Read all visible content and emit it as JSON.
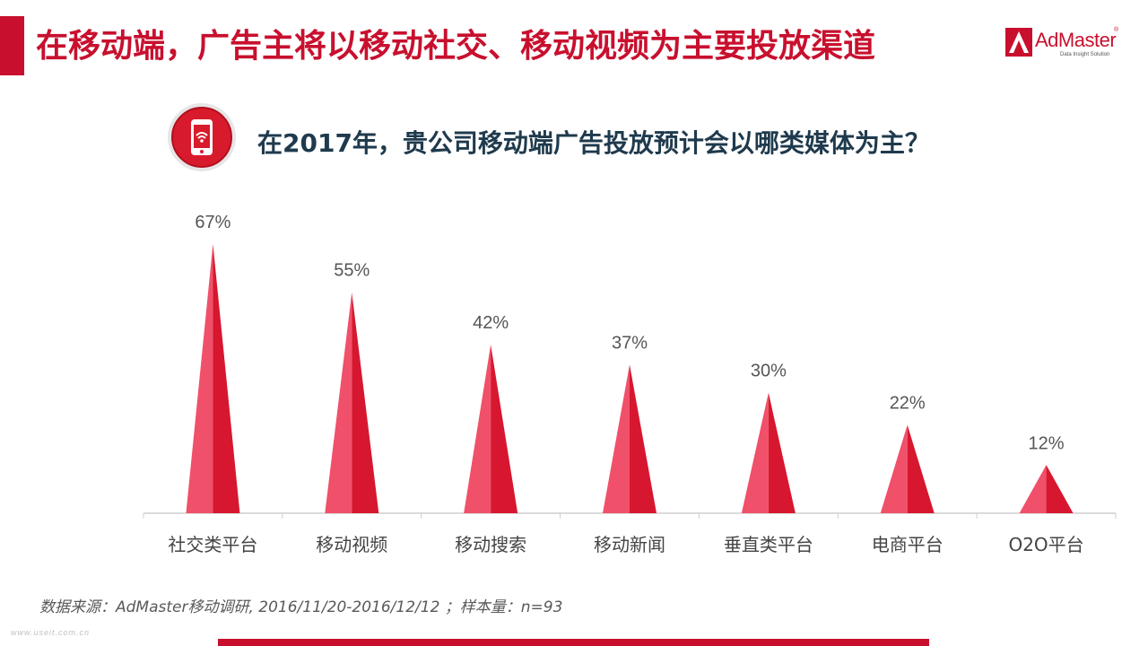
{
  "header": {
    "title": "在移动端，广告主将以移动社交、移动视频为主要投放渠道"
  },
  "logo": {
    "name": "AdMaster",
    "registered": "®",
    "tagline": "Data Insight Solution"
  },
  "question": {
    "icon": "smartphone-wifi-icon",
    "text": "在2017年，贵公司移动端广告投放预计会以哪类媒体为主？"
  },
  "chart_data": {
    "type": "bar",
    "categories": [
      "社交类平台",
      "移动视频",
      "移动搜索",
      "移动新闻",
      "垂直类平台",
      "电商平台",
      "O2O平台"
    ],
    "values": [
      67,
      55,
      42,
      37,
      30,
      22,
      12
    ],
    "value_labels": [
      "67%",
      "55%",
      "42%",
      "37%",
      "30%",
      "22%",
      "12%"
    ],
    "unit": "%",
    "title": "",
    "xlabel": "",
    "ylabel": "",
    "ylim": [
      0,
      67
    ],
    "grid": false,
    "legend": "none",
    "colors": {
      "light": "#f0506a",
      "dark": "#d7172f"
    }
  },
  "footer": {
    "source": "数据来源：AdMaster移动调研, 2016/11/20-2016/12/12 ；样本量：n=93",
    "watermark": "www.useit.com.cn"
  },
  "colors": {
    "accent": "#c8102e",
    "question_text": "#1f3a4d"
  }
}
